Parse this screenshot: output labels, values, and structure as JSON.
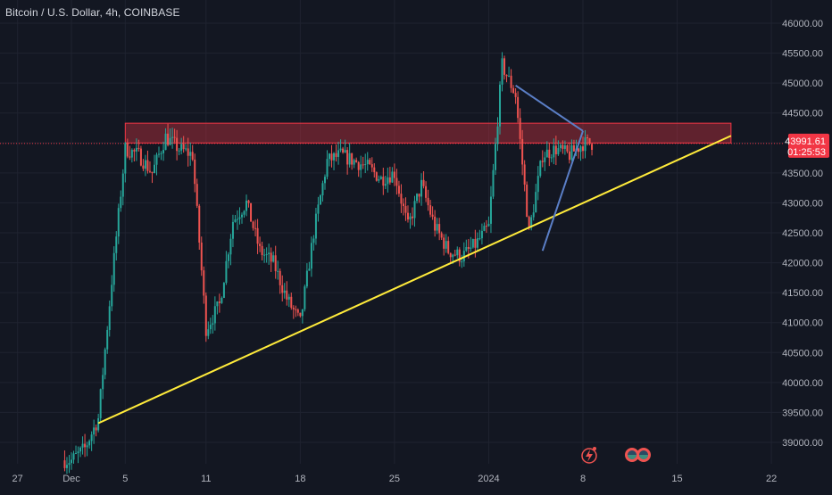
{
  "header": {
    "title": "Bitcoin / U.S. Dollar, 4h, COINBASE"
  },
  "price_axis": {
    "ticks": [
      "46000.00",
      "45500.00",
      "45000.00",
      "44500.00",
      "43500.00",
      "43000.00",
      "42500.00",
      "42000.00",
      "41500.00",
      "41000.00",
      "40500.00",
      "40000.00",
      "39500.00",
      "39000.00"
    ],
    "last_price_label": "43991.61",
    "countdown_label": "01:25:53"
  },
  "time_axis": {
    "ticks": [
      "27",
      "Dec",
      "5",
      "11",
      "18",
      "25",
      "2024",
      "8",
      "15",
      "22"
    ]
  },
  "colors": {
    "background": "#131722",
    "up": "#26a69a",
    "down": "#ef5350",
    "grid": "#1f2330",
    "zone_fill": "rgba(242,54,69,0.35)",
    "zone_border": "#f23645",
    "trendline": "#ffeb3b",
    "pennant": "#5b7fc7",
    "price_tag": "#f23645"
  },
  "chart_data": {
    "type": "candlestick",
    "symbol": "Bitcoin / U.S. Dollar",
    "interval": "4h",
    "exchange": "COINBASE",
    "y_range": [
      38700,
      46200
    ],
    "x_range": [
      "2023-11-25",
      "2024-01-23"
    ],
    "last_price": 43991.61,
    "resistance_zone": {
      "from": 44000,
      "to": 44330,
      "start": "2023-12-05",
      "end": "2024-01-19"
    },
    "support_trendline": {
      "start": {
        "date": "2023-12-03",
        "price": 39320
      },
      "end": {
        "date": "2024-01-19",
        "price": 44120
      }
    },
    "pennant_lines": [
      {
        "start": {
          "date": "2024-01-03",
          "price": 44960
        },
        "end": {
          "date": "2024-01-08",
          "price": 44200
        }
      },
      {
        "start": {
          "date": "2024-01-05",
          "price": 42200
        },
        "end": {
          "date": "2024-01-08",
          "price": 44200
        }
      }
    ],
    "price_path": [
      [
        "2023-12-01",
        38700
      ],
      [
        "2023-12-02",
        38900
      ],
      [
        "2023-12-03",
        39400
      ],
      [
        "2023-12-04",
        41700
      ],
      [
        "2023-12-05",
        43900
      ],
      [
        "2023-12-06",
        43800
      ],
      [
        "2023-12-07",
        43500
      ],
      [
        "2023-12-08",
        44100
      ],
      [
        "2023-12-09",
        43900
      ],
      [
        "2023-12-10",
        43800
      ],
      [
        "2023-12-11",
        40900
      ],
      [
        "2023-12-12",
        41300
      ],
      [
        "2023-12-13",
        42700
      ],
      [
        "2023-12-14",
        43000
      ],
      [
        "2023-12-15",
        42200
      ],
      [
        "2023-12-16",
        42000
      ],
      [
        "2023-12-17",
        41400
      ],
      [
        "2023-12-18",
        41000
      ],
      [
        "2023-12-19",
        42500
      ],
      [
        "2023-12-20",
        43700
      ],
      [
        "2023-12-21",
        43800
      ],
      [
        "2023-12-22",
        43700
      ],
      [
        "2023-12-23",
        43600
      ],
      [
        "2023-12-24",
        43400
      ],
      [
        "2023-12-25",
        43500
      ],
      [
        "2023-12-26",
        42600
      ],
      [
        "2023-12-27",
        43300
      ],
      [
        "2023-12-28",
        42600
      ],
      [
        "2023-12-29",
        42200
      ],
      [
        "2023-12-30",
        42100
      ],
      [
        "2023-12-31",
        42300
      ],
      [
        "2024-01-01",
        42600
      ],
      [
        "2024-01-02",
        45300
      ],
      [
        "2024-01-03",
        44800
      ],
      [
        "2024-01-04",
        42500
      ],
      [
        "2024-01-05",
        43800
      ],
      [
        "2024-01-06",
        43900
      ],
      [
        "2024-01-07",
        43800
      ],
      [
        "2024-01-08",
        43991.61
      ]
    ]
  }
}
